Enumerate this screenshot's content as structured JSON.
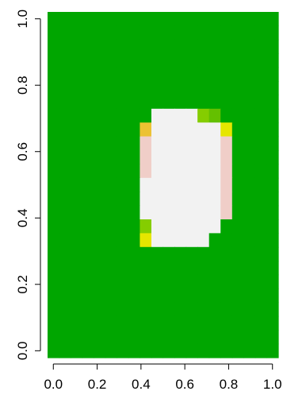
{
  "chart_data": {
    "type": "heatmap",
    "title": "",
    "xlabel": "",
    "ylabel": "",
    "xlim": [
      -0.0263,
      1.0263
    ],
    "ylim": [
      -0.0208,
      1.0208
    ],
    "x_ticks": [
      "0.0",
      "0.2",
      "0.4",
      "0.6",
      "0.8",
      "1.0"
    ],
    "y_ticks": [
      "0.0",
      "0.2",
      "0.4",
      "0.6",
      "0.8",
      "1.0"
    ],
    "grid": false,
    "legend": "none",
    "grid_size": {
      "cols": 20,
      "rows": 25
    },
    "palette": {
      "G": "#00a600",
      "W": "#f2f2f2",
      "P": "#f0cec8",
      "O": "#ecc232",
      "Y": "#e6e600",
      "L": "#85cd00",
      "M": "#64c000"
    },
    "cells": [
      "GGGGGGGGGGGGGGGGGGGG",
      "GGGGGGGGGGGGGGGGGGGG",
      "GGGGGGGGGGGGGGGGGGGG",
      "GGGGGGGGGGGGGGGGGGGG",
      "GGGGGGGGGGGGGGGGGGGG",
      "GGGGGGGGGGGGGGGGGGGG",
      "GGGGGGGGGGGGGGGGGGGG",
      "GGGGGGGGGWWWWLMGGGGG",
      "GGGGGGGGOWWWWWWYGGGG",
      "GGGGGGGGPWWWWWWPGGGG",
      "GGGGGGGGPWWWWWWPGGGG",
      "GGGGGGGGPWWWWWWPGGGG",
      "GGGGGGGGWWWWWWWPGGGG",
      "GGGGGGGGWWWWWWWPGGGG",
      "GGGGGGGGWWWWWWWPGGGG",
      "GGGGGGGGLWWWWWWGGGGG",
      "GGGGGGGGYWWWWWGGGGGG",
      "GGGGGGGGGGGGGGGGGGGG",
      "GGGGGGGGGGGGGGGGGGGG",
      "GGGGGGGGGGGGGGGGGGGG",
      "GGGGGGGGGGGGGGGGGGGG",
      "GGGGGGGGGGGGGGGGGGGG",
      "GGGGGGGGGGGGGGGGGGGG",
      "GGGGGGGGGGGGGGGGGGGG",
      "GGGGGGGGGGGGGGGGGGGG"
    ]
  }
}
